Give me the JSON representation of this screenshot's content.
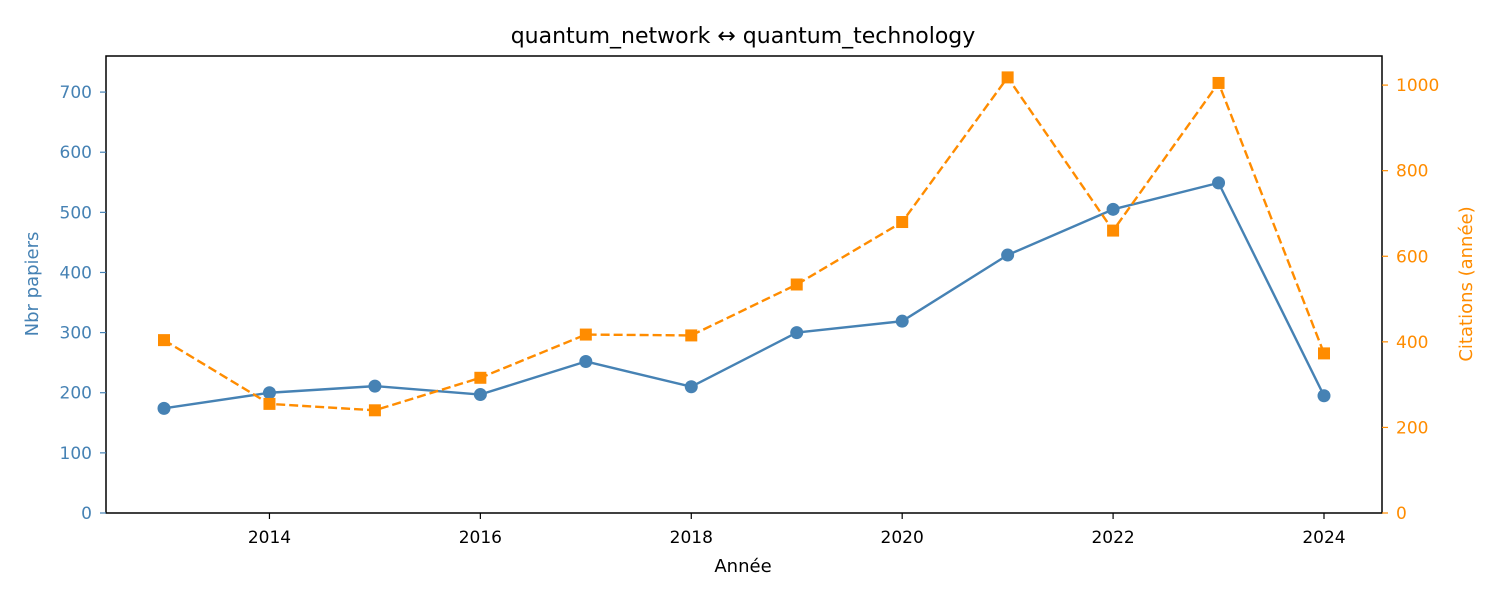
{
  "chart_data": {
    "type": "line",
    "title": "quantum_network  ↔  quantum_technology",
    "xlabel": "Année",
    "ylabel_left": "Nbr papiers",
    "ylabel_right": "Citations (année)",
    "x": [
      2013,
      2014,
      2015,
      2016,
      2017,
      2018,
      2019,
      2020,
      2021,
      2022,
      2023,
      2024
    ],
    "xlim": [
      2012.45,
      2024.55
    ],
    "x_ticks": [
      2014,
      2016,
      2018,
      2020,
      2022,
      2024
    ],
    "ylim_left": [
      0,
      760
    ],
    "y_ticks_left": [
      0,
      100,
      200,
      300,
      400,
      500,
      600,
      700
    ],
    "ylim_right": [
      0,
      1068
    ],
    "y_ticks_right": [
      0,
      200,
      400,
      600,
      800,
      1000
    ],
    "grid": false,
    "series": [
      {
        "axis": "left",
        "values": [
          174,
          200,
          211,
          197,
          252,
          210,
          300,
          319,
          429,
          505,
          549,
          195
        ],
        "color": "#4682b4",
        "line_style": "solid",
        "marker": "circle"
      },
      {
        "axis": "right",
        "values": [
          404,
          255,
          240,
          316,
          417,
          415,
          534,
          680,
          1018,
          660,
          1005,
          373
        ],
        "color": "#ff8c00",
        "line_style": "dashed",
        "marker": "square"
      }
    ],
    "colors": {
      "left_axis": "#4682b4",
      "right_axis": "#ff8c00",
      "frame": "#000000"
    }
  }
}
